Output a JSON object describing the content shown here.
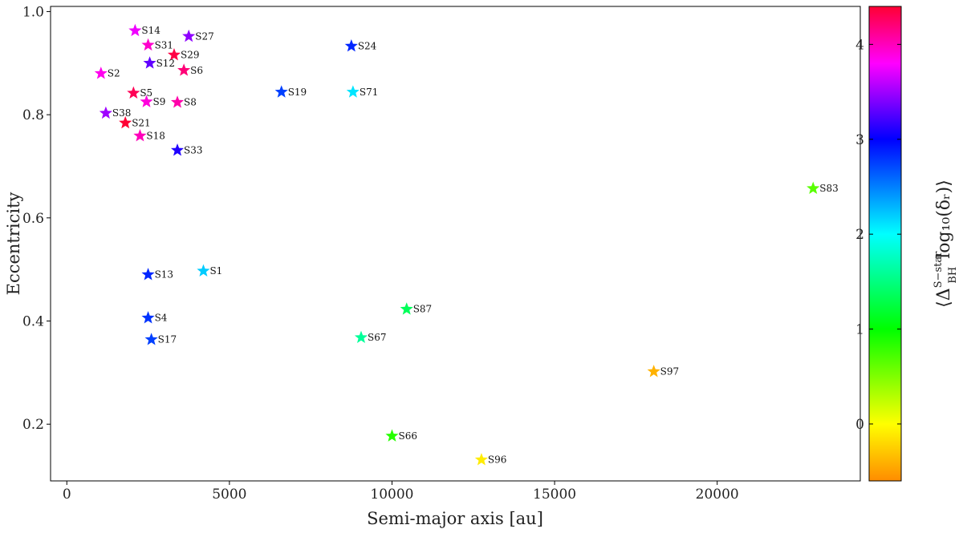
{
  "chart_data": {
    "type": "scatter",
    "xlabel": "Semi-major axis [au]",
    "ylabel": "Eccentricity",
    "xlim": [
      -500,
      24400
    ],
    "ylim": [
      0.09,
      1.01
    ],
    "xticks": [
      0,
      5000,
      10000,
      15000,
      20000
    ],
    "yticks": [
      0.2,
      0.4,
      0.6,
      0.8,
      1.0
    ],
    "ytick_labels": [
      "0.2",
      "0.4",
      "0.6",
      "0.8",
      "1.0"
    ],
    "marker": "star",
    "colorbar": {
      "label_main": "⟨Δ",
      "label_sub": "BH",
      "label_sup": "S−star",
      "label_tail": "log₁₀(δᵣ)⟩",
      "range": [
        -0.6,
        4.4
      ],
      "ticks": [
        0,
        1,
        2,
        3,
        4
      ],
      "colormap": [
        "#ff8c00",
        "#ffff00",
        "#00ff00",
        "#00ffff",
        "#0000ff",
        "#ff00ff",
        "#ff0033"
      ]
    },
    "points": [
      {
        "name": "S14",
        "x": 2100,
        "y": 0.963,
        "c": 3.75
      },
      {
        "name": "S27",
        "x": 3750,
        "y": 0.952,
        "c": 3.45
      },
      {
        "name": "S31",
        "x": 2500,
        "y": 0.935,
        "c": 3.95
      },
      {
        "name": "S24",
        "x": 8750,
        "y": 0.933,
        "c": 2.85
      },
      {
        "name": "S29",
        "x": 3300,
        "y": 0.916,
        "c": 4.35
      },
      {
        "name": "S12",
        "x": 2550,
        "y": 0.9,
        "c": 3.3
      },
      {
        "name": "S6",
        "x": 3600,
        "y": 0.886,
        "c": 4.2
      },
      {
        "name": "S2",
        "x": 1050,
        "y": 0.88,
        "c": 3.85
      },
      {
        "name": "S19",
        "x": 6600,
        "y": 0.844,
        "c": 2.75
      },
      {
        "name": "S71",
        "x": 8800,
        "y": 0.844,
        "c": 2.1
      },
      {
        "name": "S5",
        "x": 2050,
        "y": 0.842,
        "c": 4.3
      },
      {
        "name": "S9",
        "x": 2450,
        "y": 0.825,
        "c": 3.9
      },
      {
        "name": "S8",
        "x": 3400,
        "y": 0.824,
        "c": 4.05
      },
      {
        "name": "S38",
        "x": 1200,
        "y": 0.803,
        "c": 3.5
      },
      {
        "name": "S21",
        "x": 1800,
        "y": 0.784,
        "c": 4.4
      },
      {
        "name": "S18",
        "x": 2250,
        "y": 0.759,
        "c": 4.0
      },
      {
        "name": "S33",
        "x": 3400,
        "y": 0.731,
        "c": 3.1
      },
      {
        "name": "S83",
        "x": 22950,
        "y": 0.657,
        "c": 0.65
      },
      {
        "name": "S1",
        "x": 4200,
        "y": 0.497,
        "c": 2.2
      },
      {
        "name": "S13",
        "x": 2500,
        "y": 0.49,
        "c": 2.85
      },
      {
        "name": "S87",
        "x": 10450,
        "y": 0.423,
        "c": 1.35
      },
      {
        "name": "S4",
        "x": 2500,
        "y": 0.406,
        "c": 2.8
      },
      {
        "name": "S67",
        "x": 9050,
        "y": 0.368,
        "c": 1.6
      },
      {
        "name": "S17",
        "x": 2600,
        "y": 0.364,
        "c": 2.75
      },
      {
        "name": "S97",
        "x": 18050,
        "y": 0.302,
        "c": -0.4
      },
      {
        "name": "S66",
        "x": 10000,
        "y": 0.177,
        "c": 0.85
      },
      {
        "name": "S96",
        "x": 12750,
        "y": 0.131,
        "c": -0.1
      }
    ]
  }
}
